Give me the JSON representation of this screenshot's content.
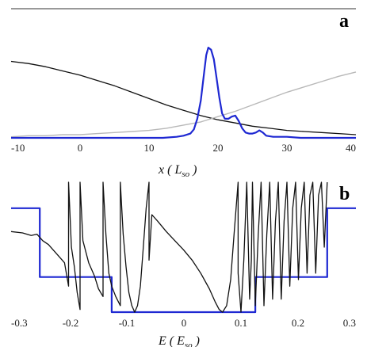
{
  "chart_data": [
    {
      "panel": "a",
      "type": "line",
      "xlabel": {
        "var": "x",
        "unit_main": "L",
        "unit_sub": "so"
      },
      "xlim": [
        -10,
        40
      ],
      "xticks": [
        "-10",
        "0",
        "10",
        "20",
        "30",
        "40"
      ],
      "ylim": [
        0,
        1
      ],
      "grid": false,
      "series": [
        {
          "color": "#111111",
          "x": [
            -10,
            -7.5,
            -5,
            -2.5,
            0,
            2.5,
            5,
            7.5,
            10,
            12.5,
            15,
            17.5,
            20,
            22.5,
            25,
            27.5,
            30,
            32.5,
            35,
            37.5,
            40
          ],
          "y": [
            0.72,
            0.7,
            0.67,
            0.63,
            0.59,
            0.54,
            0.49,
            0.43,
            0.37,
            0.31,
            0.26,
            0.21,
            0.17,
            0.14,
            0.11,
            0.09,
            0.07,
            0.06,
            0.05,
            0.04,
            0.03
          ]
        },
        {
          "color": "#b8b8b8",
          "x": [
            -10,
            -7.5,
            -5,
            -2.5,
            0,
            2.5,
            5,
            7.5,
            10,
            12.5,
            15,
            17.5,
            20,
            22.5,
            25,
            27.5,
            30,
            32.5,
            35,
            37.5,
            40
          ],
          "y": [
            0.01,
            0.02,
            0.02,
            0.03,
            0.03,
            0.04,
            0.05,
            0.06,
            0.07,
            0.09,
            0.12,
            0.15,
            0.2,
            0.25,
            0.31,
            0.37,
            0.43,
            0.48,
            0.53,
            0.58,
            0.62
          ]
        },
        {
          "color": "#1e28d2",
          "x": [
            -10,
            10,
            12,
            14,
            15,
            16,
            16.5,
            17,
            17.5,
            18,
            18.3,
            18.6,
            19,
            19.4,
            19.8,
            20.2,
            20.6,
            21,
            21.5,
            22,
            22.5,
            23,
            23.5,
            24,
            24.5,
            25,
            25.5,
            26,
            26.5,
            27,
            28,
            30,
            32,
            35,
            40
          ],
          "y": [
            0.0,
            0.0,
            0.0,
            0.01,
            0.02,
            0.04,
            0.08,
            0.18,
            0.35,
            0.62,
            0.78,
            0.85,
            0.83,
            0.74,
            0.56,
            0.38,
            0.23,
            0.18,
            0.18,
            0.2,
            0.21,
            0.16,
            0.09,
            0.05,
            0.04,
            0.04,
            0.05,
            0.07,
            0.05,
            0.02,
            0.01,
            0.01,
            0.0,
            0.0,
            0.0
          ]
        }
      ]
    },
    {
      "panel": "b",
      "type": "line",
      "xlabel": {
        "var": "E",
        "unit_main": "E",
        "unit_sub": "so"
      },
      "xlim": [
        -0.3,
        0.3
      ],
      "xticks": [
        "-0.3",
        "-0.2",
        "-0.1",
        "0",
        "0.1",
        "0.2",
        "0.3"
      ],
      "ylim": [
        0,
        1
      ],
      "grid": false,
      "series": [
        {
          "color": "#1e28d2",
          "type": "step",
          "x": [
            -0.3,
            -0.25,
            -0.25,
            -0.125,
            -0.125,
            0.125,
            0.125,
            0.25,
            0.25,
            0.3
          ],
          "y": [
            0.8,
            0.8,
            0.27,
            0.27,
            0.0,
            0.0,
            0.27,
            0.27,
            0.8,
            0.8
          ]
        },
        {
          "color": "#111111",
          "x": [
            -0.3,
            -0.28,
            -0.265,
            -0.255,
            -0.245,
            -0.235,
            -0.225,
            -0.215,
            -0.207,
            -0.2,
            -0.2,
            -0.195,
            -0.19,
            -0.185,
            -0.18,
            -0.18,
            -0.175,
            -0.165,
            -0.155,
            -0.148,
            -0.14,
            -0.14,
            -0.135,
            -0.13,
            -0.125,
            -0.118,
            -0.11,
            -0.11,
            -0.105,
            -0.1,
            -0.095,
            -0.09,
            -0.085,
            -0.08,
            -0.075,
            -0.07,
            -0.065,
            -0.06,
            -0.06,
            -0.055,
            -0.045,
            -0.03,
            -0.015,
            0.0,
            0.015,
            0.03,
            0.045,
            0.055,
            0.062,
            0.068,
            0.075,
            0.082,
            0.088,
            0.095,
            0.095,
            0.1,
            0.105,
            0.11,
            0.115,
            0.118,
            0.12,
            0.125,
            0.13,
            0.135,
            0.14,
            0.145,
            0.15,
            0.155,
            0.16,
            0.165,
            0.17,
            0.175,
            0.18,
            0.185,
            0.19,
            0.195,
            0.2,
            0.205,
            0.21,
            0.215,
            0.22,
            0.225,
            0.23,
            0.235,
            0.24,
            0.245,
            0.25
          ],
          "y": [
            0.62,
            0.61,
            0.59,
            0.6,
            0.55,
            0.52,
            0.47,
            0.42,
            0.38,
            0.2,
            1.0,
            0.5,
            0.35,
            0.15,
            0.02,
            1.0,
            0.55,
            0.38,
            0.28,
            0.18,
            0.12,
            1.0,
            0.6,
            0.3,
            0.2,
            0.12,
            0.05,
            1.0,
            0.6,
            0.35,
            0.15,
            0.05,
            0.0,
            0.05,
            0.2,
            0.5,
            0.8,
            1.0,
            0.4,
            0.75,
            0.7,
            0.62,
            0.55,
            0.48,
            0.4,
            0.3,
            0.18,
            0.08,
            0.02,
            0.0,
            0.05,
            0.25,
            0.6,
            1.0,
            0.3,
            0.0,
            0.4,
            1.0,
            0.1,
            0.4,
            1.0,
            0.05,
            0.6,
            1.0,
            0.05,
            0.6,
            1.0,
            0.1,
            0.7,
            1.0,
            0.1,
            0.7,
            1.0,
            0.2,
            0.8,
            1.0,
            0.25,
            0.8,
            1.0,
            0.3,
            0.9,
            1.0,
            0.3,
            0.9,
            1.0,
            0.5,
            1.0
          ]
        }
      ]
    }
  ]
}
